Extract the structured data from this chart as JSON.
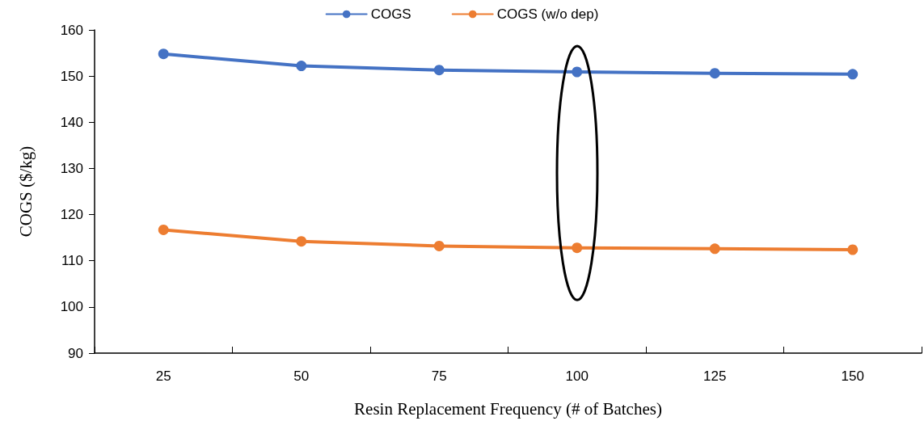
{
  "chart_data": {
    "type": "line",
    "xlabel": "Resin Replacement Frequency (# of Batches)",
    "ylabel": "COGS ($/kg)",
    "categories": [
      "25",
      "50",
      "75",
      "100",
      "125",
      "150"
    ],
    "series": [
      {
        "name": "COGS",
        "color": "#4472c4",
        "values": [
          154.8,
          152.2,
          151.3,
          150.9,
          150.6,
          150.4
        ]
      },
      {
        "name": "COGS (w/o dep)",
        "color": "#ed7d31",
        "values": [
          116.7,
          114.2,
          113.2,
          112.8,
          112.6,
          112.4
        ]
      }
    ],
    "ylim": [
      90,
      160
    ],
    "yticks": [
      90,
      100,
      110,
      120,
      130,
      140,
      150,
      160
    ],
    "grid": false,
    "legend": "top",
    "marker": "circle",
    "line_style": "solid"
  }
}
